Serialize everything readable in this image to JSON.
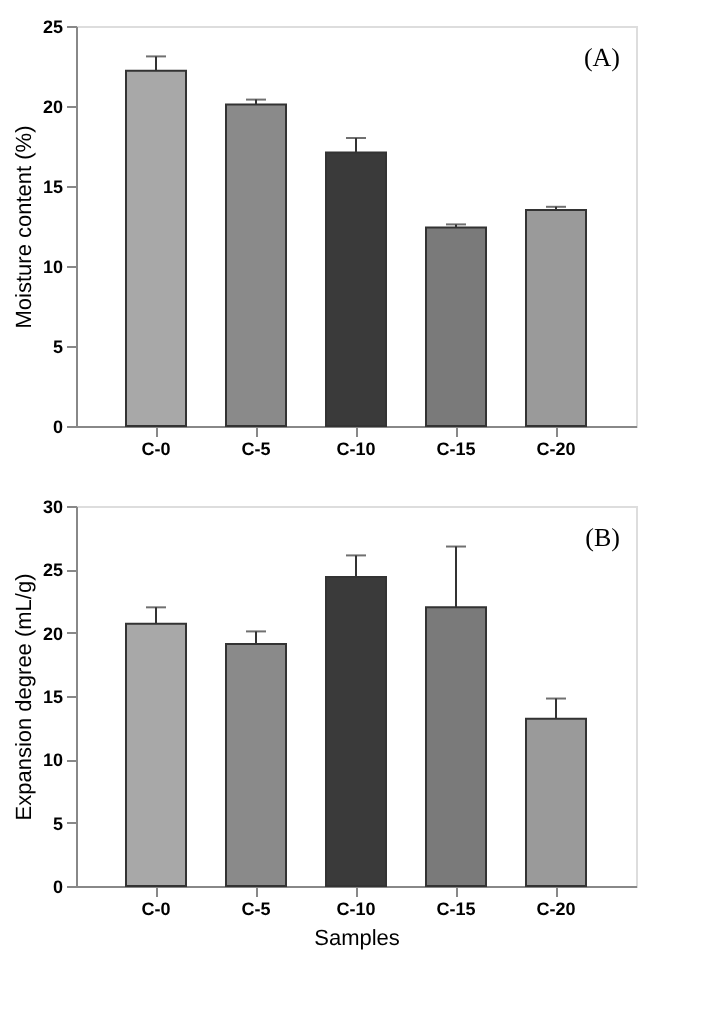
{
  "chart_data": [
    {
      "type": "bar",
      "ylabel": "Moisture content (%)",
      "categories": [
        "C-0",
        "C-5",
        "C-10",
        "C-15",
        "C-20"
      ],
      "values": [
        22.2,
        20.1,
        17.1,
        12.4,
        13.5
      ],
      "errors": [
        [
          22.2,
          23.1
        ],
        [
          20.1,
          20.4
        ],
        [
          17.1,
          18.0
        ],
        [
          12.4,
          12.6
        ],
        [
          13.5,
          13.7
        ]
      ],
      "colors": [
        "#a8a8a8",
        "#8a8a8a",
        "#3a3a3a",
        "#7a7a7a",
        "#9a9a9a"
      ],
      "ylim": [
        0,
        25
      ],
      "yticks": [
        0,
        5,
        10,
        15,
        20,
        25
      ],
      "annotations": [
        "(A)"
      ],
      "grid": false
    },
    {
      "type": "bar",
      "xlabel": "Samples",
      "ylabel": "Expansion degree (mL/g)",
      "categories": [
        "C-0",
        "C-5",
        "C-10",
        "C-15",
        "C-20"
      ],
      "values": [
        20.7,
        19.1,
        24.4,
        22.0,
        13.2
      ],
      "errors": [
        [
          20.7,
          22.0
        ],
        [
          19.1,
          20.1
        ],
        [
          24.4,
          26.1
        ],
        [
          22.0,
          26.8
        ],
        [
          13.2,
          14.8
        ]
      ],
      "colors": [
        "#a8a8a8",
        "#8a8a8a",
        "#3a3a3a",
        "#7a7a7a",
        "#9a9a9a"
      ],
      "ylim": [
        0,
        30
      ],
      "yticks": [
        0,
        5,
        10,
        15,
        20,
        25,
        30
      ],
      "annotations": [
        "(B)"
      ],
      "grid": false
    }
  ]
}
